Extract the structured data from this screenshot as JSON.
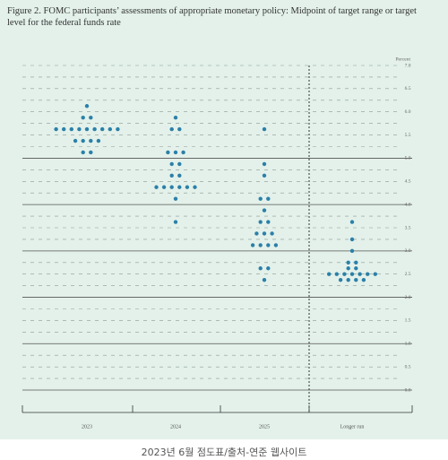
{
  "title": "Figure 2.  FOMC participants’ assessments of appropriate monetary policy:  Midpoint of target range or target level for the federal funds rate",
  "caption": "2023년 6월 점도표/출처-연준 웹사이트",
  "chart_data": {
    "type": "dot",
    "y_label": "Percent",
    "color": "#2b80a8",
    "ylim": [
      0,
      7
    ],
    "yticks": [
      {
        "value": 0,
        "label": "0.0"
      },
      {
        "value": 0.5,
        "label": "0.5"
      },
      {
        "value": 1,
        "label": "1.0"
      },
      {
        "value": 1.5,
        "label": "1.5"
      },
      {
        "value": 2,
        "label": "2.0"
      },
      {
        "value": 2.5,
        "label": "2.5"
      },
      {
        "value": 3,
        "label": "3.0"
      },
      {
        "value": 3.5,
        "label": "3.5"
      },
      {
        "value": 4,
        "label": "4.0"
      },
      {
        "value": 4.5,
        "label": "4.5"
      },
      {
        "value": 5,
        "label": "5.0"
      },
      {
        "value": 5.5,
        "label": "5.5"
      },
      {
        "value": 6,
        "label": "6.0"
      },
      {
        "value": 6.5,
        "label": "6.5"
      },
      {
        "value": 7,
        "label": "7.0"
      }
    ],
    "solid_lines": [
      0,
      1,
      2,
      3,
      4,
      5
    ],
    "groups": [
      {
        "label": "2023",
        "values": [
          6.125,
          5.875,
          5.875,
          5.625,
          5.625,
          5.625,
          5.625,
          5.625,
          5.625,
          5.625,
          5.625,
          5.625,
          5.375,
          5.375,
          5.375,
          5.375,
          5.125,
          5.125
        ]
      },
      {
        "label": "2024",
        "values": [
          5.875,
          5.625,
          5.625,
          5.125,
          5.125,
          5.125,
          4.875,
          4.875,
          4.625,
          4.625,
          4.375,
          4.375,
          4.375,
          4.375,
          4.375,
          4.375,
          4.125,
          3.625
        ]
      },
      {
        "label": "2025",
        "values": [
          5.625,
          4.875,
          4.625,
          4.125,
          4.125,
          3.875,
          3.625,
          3.625,
          3.375,
          3.375,
          3.375,
          3.125,
          3.125,
          3.125,
          3.125,
          2.625,
          2.625,
          2.375
        ]
      },
      {
        "label": "Longer run",
        "values": [
          3.625,
          3.25,
          3,
          2.75,
          2.75,
          2.625,
          2.625,
          2.5,
          2.5,
          2.5,
          2.5,
          2.5,
          2.5,
          2.5,
          2.375,
          2.375,
          2.375,
          2.375
        ]
      }
    ]
  }
}
